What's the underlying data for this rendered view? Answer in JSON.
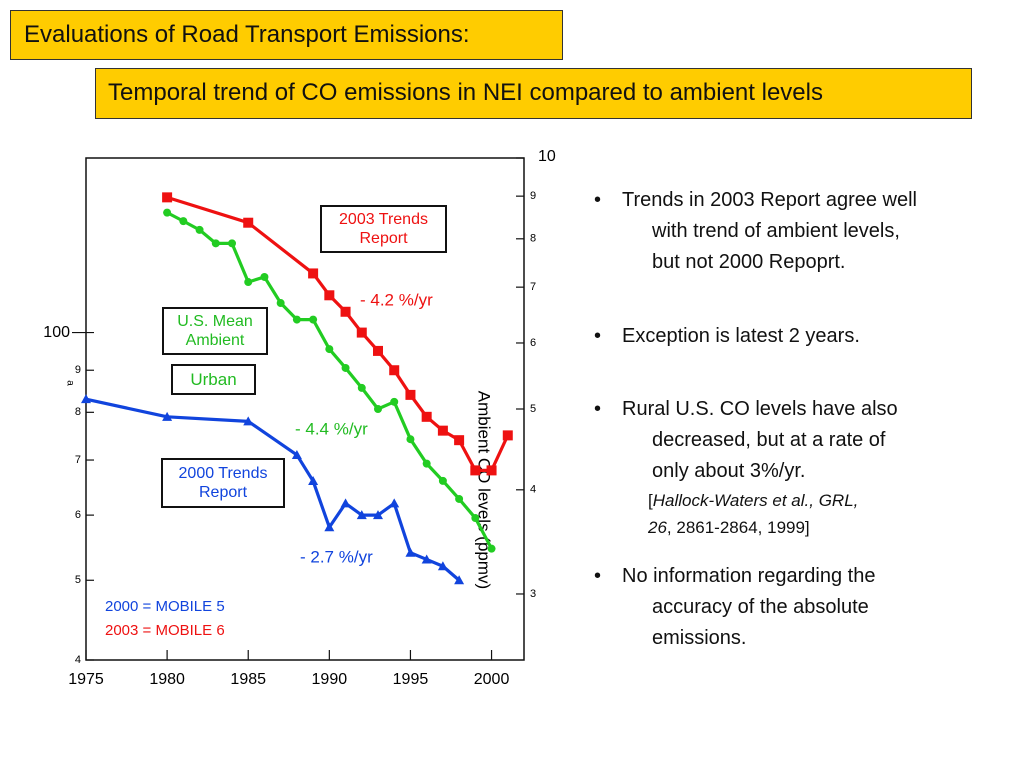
{
  "slide": {
    "title": "Evaluations of Road Transport Emissions:",
    "subtitle": "Temporal trend of CO emissions in NEI compared to ambient levels",
    "bullets": [
      {
        "lines": [
          "Trends in 2003 Report agree well",
          "with trend of ambient levels,",
          "but not 2000 Repoprt."
        ]
      },
      {
        "lines": [
          "Exception is latest 2 years."
        ]
      },
      {
        "lines": [
          "Rural U.S. CO levels have also",
          "decreased, but at a rate of",
          "only about 3%/yr."
        ],
        "citation": [
          "[",
          "Hallock-Waters et al., GRL,",
          "26",
          ", 2861-2864, 1999]"
        ]
      },
      {
        "lines": [
          "No information regarding the",
          "accuracy of the absolute",
          "emissions."
        ]
      }
    ]
  },
  "chart_data": {
    "type": "line",
    "ylabel": "a",
    "y2label": "Ambient CO levels (ppmv)",
    "xlim": [
      1975,
      2002
    ],
    "xticks": [
      1975,
      1980,
      1985,
      1990,
      1995,
      2000
    ],
    "ylim": [
      40,
      163
    ],
    "yticks": [
      {
        "value": 40,
        "label": "4"
      },
      {
        "value": 50,
        "label": "5"
      },
      {
        "value": 60,
        "label": "6"
      },
      {
        "value": 70,
        "label": "7"
      },
      {
        "value": 80,
        "label": "8"
      },
      {
        "value": 90,
        "label": "9"
      },
      100
    ],
    "y2lim": [
      2.5,
      10
    ],
    "y2ticks": [
      3,
      4,
      5,
      6,
      7,
      8,
      9,
      10
    ],
    "log_scale": true,
    "series": [
      {
        "name": "2003 Trends Report",
        "color": "#ee1111",
        "marker": "square",
        "axis": "y",
        "x": [
          1980,
          1985,
          1989,
          1990,
          1991,
          1992,
          1993,
          1994,
          1995,
          1996,
          1997,
          1998,
          1999,
          2000,
          2001
        ],
        "values": [
          146,
          136,
          118,
          111,
          106,
          100,
          95,
          90,
          84,
          79,
          76,
          74,
          68,
          68,
          75
        ]
      },
      {
        "name": "U.S. Mean Ambient",
        "color": "#22cc22",
        "marker": "circle",
        "axis": "y2",
        "x": [
          1980,
          1981,
          1982,
          1983,
          1984,
          1985,
          1986,
          1987,
          1988,
          1989,
          1990,
          1991,
          1992,
          1993,
          1994,
          1995,
          1996,
          1997,
          1998,
          1999,
          2000
        ],
        "values": [
          8.6,
          8.4,
          8.2,
          7.9,
          7.9,
          7.1,
          7.2,
          6.7,
          6.4,
          6.4,
          5.9,
          5.6,
          5.3,
          5.0,
          5.1,
          4.6,
          4.3,
          4.1,
          3.9,
          3.7,
          3.4
        ]
      },
      {
        "name": "2000 Trends Report",
        "color": "#1144dd",
        "marker": "triangle",
        "axis": "y",
        "x": [
          1975,
          1980,
          1985,
          1988,
          1989,
          1990,
          1991,
          1992,
          1993,
          1994,
          1995,
          1996,
          1997,
          1998
        ],
        "values": [
          83,
          79,
          78,
          71,
          66,
          58,
          62,
          60,
          60,
          62,
          54,
          53,
          52,
          50
        ]
      }
    ],
    "annotations": [
      "- 4.2 %/yr",
      "- 4.4 %/yr",
      "- 2.7 %/yr",
      "Urban",
      "2000 = MOBILE 5",
      "2003 = MOBILE 6"
    ]
  }
}
